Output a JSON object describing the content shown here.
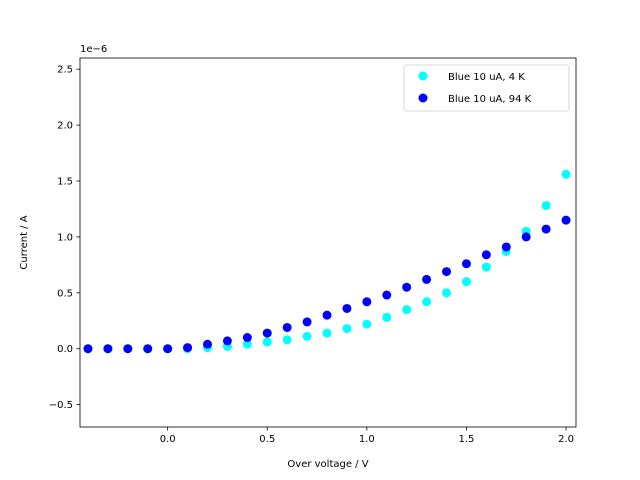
{
  "chart_data": {
    "type": "scatter",
    "xlabel": "Over voltage / V",
    "ylabel": "Current / A",
    "offset_label": "1e−6",
    "xlim": [
      -0.44,
      2.05
    ],
    "ylim": [
      -0.7,
      2.6
    ],
    "x_ticks": [
      0.0,
      0.5,
      1.0,
      1.5,
      2.0
    ],
    "x_tick_labels": [
      "0.0",
      "0.5",
      "1.0",
      "1.5",
      "2.0"
    ],
    "y_ticks": [
      -0.5,
      0.0,
      0.5,
      1.0,
      1.5,
      2.0,
      2.5
    ],
    "y_tick_labels": [
      "−0.5",
      "0.0",
      "0.5",
      "1.0",
      "1.5",
      "2.0",
      "2.5"
    ],
    "y_unit_scale": 1e-06,
    "legend_position": "top-right",
    "grid": false,
    "series": [
      {
        "name": "Blue 10 uA, 4 K",
        "color": "#00ffff",
        "x": [
          -0.4,
          -0.3,
          -0.2,
          -0.1,
          0.0,
          0.1,
          0.2,
          0.3,
          0.4,
          0.5,
          0.6,
          0.7,
          0.8,
          0.9,
          1.0,
          1.1,
          1.2,
          1.3,
          1.4,
          1.5,
          1.6,
          1.7,
          1.8,
          1.9,
          2.0
        ],
        "y": [
          0.0,
          0.0,
          0.0,
          0.0,
          0.0,
          0.0,
          0.01,
          0.02,
          0.04,
          0.06,
          0.08,
          0.11,
          0.14,
          0.18,
          0.22,
          0.28,
          0.35,
          0.42,
          0.5,
          0.6,
          0.73,
          0.87,
          1.05,
          1.28,
          1.56
        ]
      },
      {
        "name": "Blue 10 uA, 94 K",
        "color": "#0000ff",
        "x": [
          -0.4,
          -0.3,
          -0.2,
          -0.1,
          0.0,
          0.1,
          0.2,
          0.3,
          0.4,
          0.5,
          0.6,
          0.7,
          0.8,
          0.9,
          1.0,
          1.1,
          1.2,
          1.3,
          1.4,
          1.5,
          1.6,
          1.7,
          1.8,
          1.9,
          2.0
        ],
        "y": [
          0.0,
          0.0,
          0.0,
          0.0,
          0.0,
          0.01,
          0.04,
          0.07,
          0.1,
          0.14,
          0.19,
          0.24,
          0.3,
          0.36,
          0.42,
          0.48,
          0.55,
          0.62,
          0.69,
          0.76,
          0.84,
          0.91,
          1.0,
          1.07,
          1.15
        ]
      }
    ]
  }
}
